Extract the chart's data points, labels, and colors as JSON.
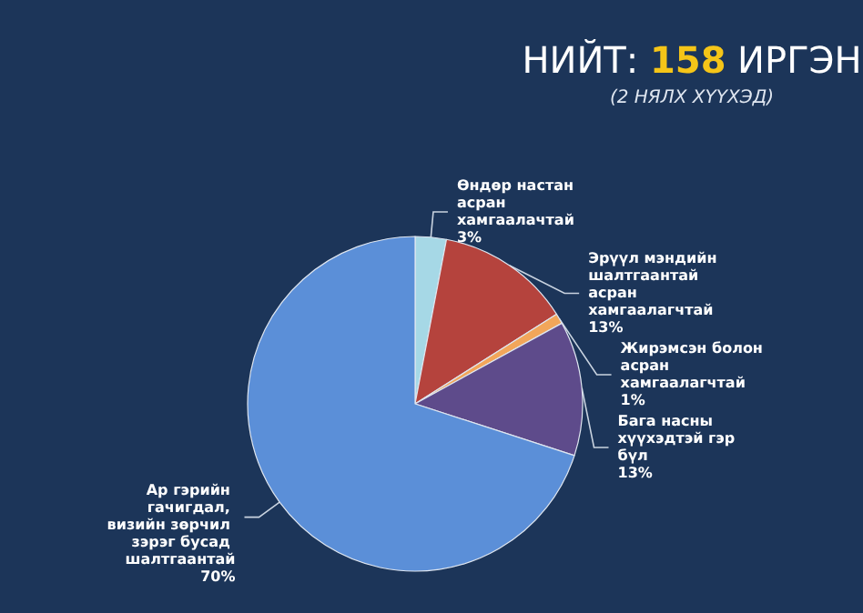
{
  "chart_data": {
    "type": "pie",
    "title": "НИЙТ: 158 ИРГЭН",
    "subtitle": "(2 НЯЛХ ХҮҮХЭД)",
    "categories": [
      "Өндөр настан асран хамгаалачтай",
      "Эрүүл мэндийн шалтгаантай асран хамгаалагчтай",
      "Жирэмсэн болон асран хамгаалагчтай",
      "Бага насны хүүхэдтэй гэр бүл",
      "Ар гэрийн гачигдал, визийн зөрчил зэрэг бусад шалтгаантай"
    ],
    "values": [
      3,
      13,
      1,
      13,
      70
    ],
    "value_labels": [
      "3%",
      "13%",
      "1%",
      "13%",
      "70%"
    ],
    "colors": [
      "#a6d8e6",
      "#b5433d",
      "#f2a65a",
      "#5e4b8b",
      "#5b8fd8"
    ]
  }
}
